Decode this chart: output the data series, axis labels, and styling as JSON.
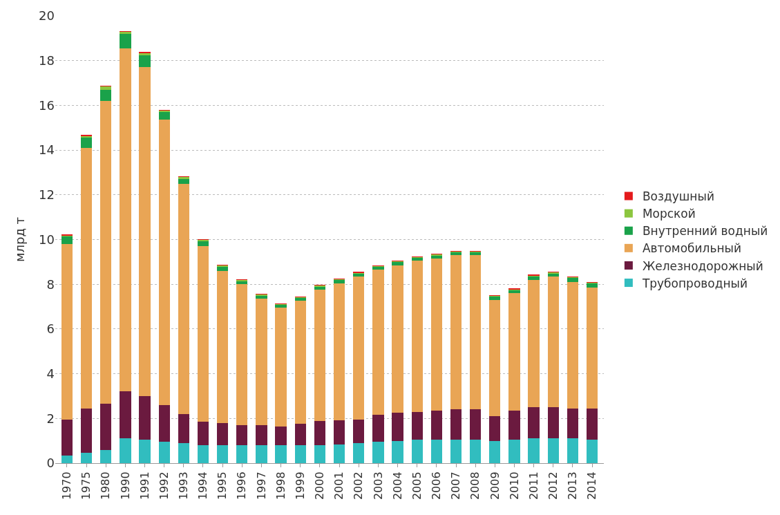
{
  "chart_data": {
    "type": "bar",
    "stacked": true,
    "ylabel": "млрд т",
    "categories": [
      "1970",
      "1975",
      "1980",
      "1990",
      "1991",
      "1992",
      "1993",
      "1994",
      "1995",
      "1996",
      "1997",
      "1998",
      "1999",
      "2000",
      "2001",
      "2002",
      "2003",
      "2004",
      "2005",
      "2006",
      "2007",
      "2008",
      "2009",
      "2010",
      "2011",
      "2012",
      "2013",
      "2014"
    ],
    "series": [
      {
        "name": "Трубопроводный",
        "color": "#31bdbf",
        "values": [
          0.35,
          0.45,
          0.6,
          1.1,
          1.05,
          0.95,
          0.9,
          0.8,
          0.8,
          0.8,
          0.8,
          0.8,
          0.8,
          0.8,
          0.85,
          0.9,
          0.95,
          1.0,
          1.05,
          1.05,
          1.05,
          1.05,
          1.0,
          1.05,
          1.1,
          1.1,
          1.1,
          1.05
        ]
      },
      {
        "name": "Железнодорожный",
        "color": "#6b1a3f",
        "values": [
          1.6,
          2.0,
          2.05,
          2.1,
          1.95,
          1.65,
          1.3,
          1.05,
          1.0,
          0.9,
          0.9,
          0.85,
          0.95,
          1.1,
          1.07,
          1.05,
          1.2,
          1.25,
          1.25,
          1.3,
          1.35,
          1.35,
          1.1,
          1.3,
          1.4,
          1.4,
          1.35,
          1.4
        ]
      },
      {
        "name": "Автомобильный",
        "color": "#e9a555",
        "values": [
          7.85,
          11.65,
          13.55,
          15.35,
          14.7,
          12.75,
          10.3,
          7.85,
          6.8,
          6.3,
          5.65,
          5.3,
          5.5,
          5.85,
          6.13,
          6.4,
          6.5,
          6.6,
          6.75,
          6.8,
          6.9,
          6.9,
          5.2,
          5.25,
          5.7,
          5.85,
          5.65,
          5.4
        ]
      },
      {
        "name": "Внутренний водный",
        "color": "#1aa24a",
        "values": [
          0.35,
          0.45,
          0.5,
          0.65,
          0.55,
          0.35,
          0.22,
          0.23,
          0.2,
          0.15,
          0.15,
          0.15,
          0.15,
          0.15,
          0.15,
          0.15,
          0.15,
          0.15,
          0.15,
          0.15,
          0.15,
          0.15,
          0.15,
          0.15,
          0.15,
          0.15,
          0.2,
          0.2
        ]
      },
      {
        "name": "Морской",
        "color": "#8cc63f",
        "values": [
          0.05,
          0.1,
          0.15,
          0.1,
          0.1,
          0.08,
          0.08,
          0.07,
          0.05,
          0.05,
          0.05,
          0.03,
          0.03,
          0.05,
          0.03,
          0.03,
          0.03,
          0.03,
          0.03,
          0.05,
          0.03,
          0.03,
          0.05,
          0.03,
          0.05,
          0.05,
          0.03,
          0.03
        ]
      },
      {
        "name": "Воздушный",
        "color": "#e41a1c",
        "values": [
          0.01,
          0.01,
          0.01,
          0.02,
          0.02,
          0.01,
          0.01,
          0.01,
          0.01,
          0.01,
          0.01,
          0.01,
          0.01,
          0.01,
          0.01,
          0.01,
          0.01,
          0.01,
          0.01,
          0.01,
          0.01,
          0.01,
          0.01,
          0.01,
          0.02,
          0.01,
          0.01,
          0.01
        ]
      }
    ],
    "ylim": [
      0,
      20
    ],
    "yticks": [
      0,
      2,
      4,
      6,
      8,
      10,
      12,
      14,
      16,
      18,
      20
    ],
    "grid": "y",
    "legend": "right"
  }
}
